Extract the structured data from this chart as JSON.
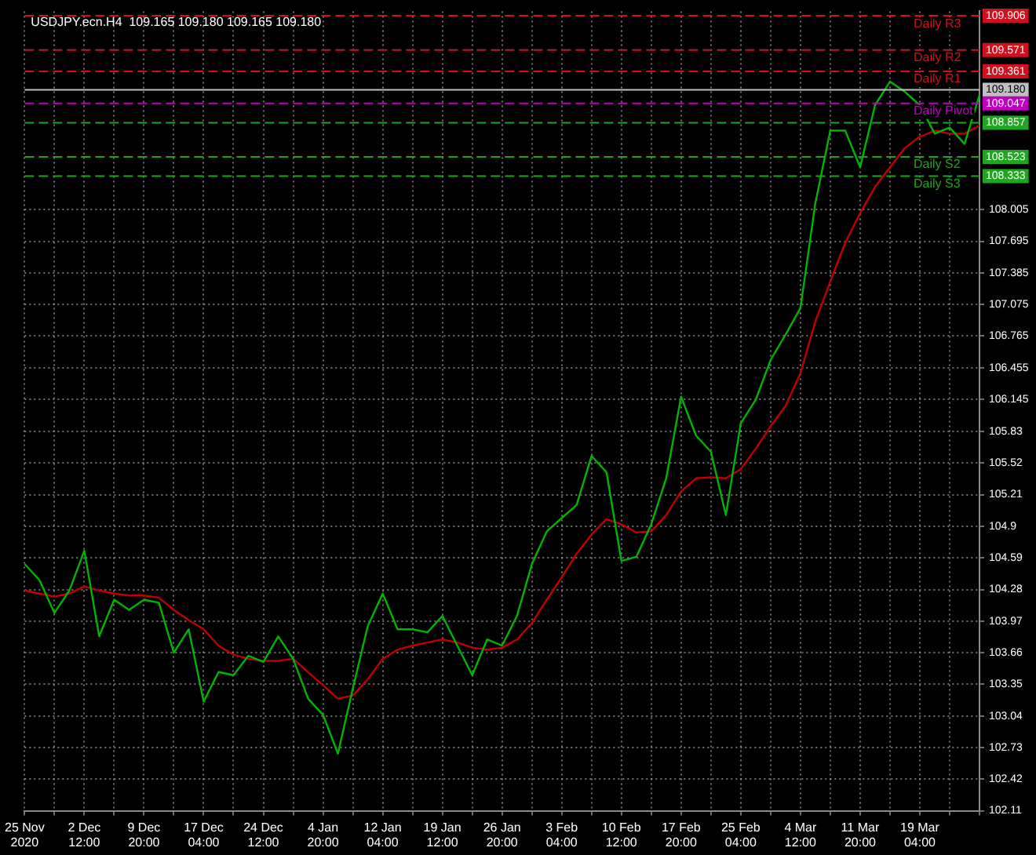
{
  "chart_data": {
    "type": "line",
    "title": "USDJPY.ecn.H4  109.165 109.180 109.165 109.180",
    "categories": [
      "25 Nov 2020",
      null,
      null,
      null,
      "2 Dec 12:00",
      null,
      null,
      null,
      "9 Dec 20:00",
      null,
      null,
      null,
      "17 Dec 04:00",
      null,
      null,
      null,
      "24 Dec 12:00",
      null,
      null,
      null,
      "4 Jan 20:00",
      null,
      null,
      null,
      "12 Jan 04:00",
      null,
      null,
      null,
      "19 Jan 12:00",
      null,
      null,
      null,
      "26 Jan 20:00",
      null,
      null,
      null,
      "3 Feb 04:00",
      null,
      null,
      null,
      "10 Feb 12:00",
      null,
      null,
      null,
      "17 Feb 20:00",
      null,
      null,
      null,
      "25 Feb 04:00",
      null,
      null,
      null,
      "4 Mar 12:00",
      null,
      null,
      null,
      "11 Mar 20:00",
      null,
      null,
      null,
      "19 Mar 04:00",
      null,
      null,
      null,
      null
    ],
    "series": [
      {
        "color": "#00b400",
        "values": [
          104.53,
          104.37,
          104.05,
          104.27,
          104.66,
          103.82,
          104.18,
          104.08,
          104.18,
          104.15,
          103.66,
          103.89,
          103.18,
          103.47,
          103.44,
          103.63,
          103.57,
          103.82,
          103.6,
          103.21,
          103.05,
          102.67,
          103.31,
          103.92,
          104.24,
          103.89,
          103.89,
          103.86,
          104.02,
          103.73,
          103.44,
          103.79,
          103.73,
          104.02,
          104.53,
          104.85,
          104.98,
          105.11,
          105.59,
          105.43,
          104.56,
          104.6,
          104.92,
          105.37,
          106.17,
          105.79,
          105.63,
          105.01,
          105.91,
          106.14,
          106.53,
          106.78,
          107.04,
          108.07,
          108.78,
          108.78,
          108.42,
          109.03,
          109.26,
          109.16,
          109.03,
          108.75,
          108.81,
          108.65,
          109.13
        ]
      },
      {
        "color": "#c00000",
        "values": [
          104.27,
          104.24,
          104.21,
          104.24,
          104.31,
          104.27,
          104.24,
          104.22,
          104.22,
          104.2,
          104.08,
          103.98,
          103.89,
          103.73,
          103.64,
          103.6,
          103.58,
          103.58,
          103.6,
          103.47,
          103.34,
          103.21,
          103.24,
          103.4,
          103.6,
          103.69,
          103.73,
          103.76,
          103.79,
          103.76,
          103.71,
          103.69,
          103.71,
          103.79,
          103.95,
          104.18,
          104.4,
          104.63,
          104.82,
          104.97,
          104.92,
          104.84,
          104.85,
          105.01,
          105.24,
          105.37,
          105.38,
          105.37,
          105.46,
          105.66,
          105.88,
          106.08,
          106.4,
          106.91,
          107.3,
          107.68,
          107.97,
          108.23,
          108.42,
          108.61,
          108.72,
          108.78,
          108.75,
          108.75,
          108.83
        ]
      }
    ],
    "ylim": [
      102.11,
      109.95
    ],
    "yticks": [
      102.11,
      102.42,
      102.73,
      103.04,
      103.35,
      103.66,
      103.97,
      104.28,
      104.59,
      104.9,
      105.21,
      105.52,
      105.83,
      106.145,
      106.455,
      106.765,
      107.075,
      107.385,
      107.695,
      108.005
    ],
    "annotations": [
      {
        "text": "109.906",
        "y": 109.906
      },
      {
        "text": "109.571",
        "y": 109.571
      },
      {
        "text": "109.361",
        "y": 109.361
      },
      {
        "text": "109.180",
        "y": 109.18
      },
      {
        "text": "109.047",
        "y": 109.047
      },
      {
        "text": "108.857",
        "y": 108.857
      },
      {
        "text": "108.523",
        "y": 108.523
      },
      {
        "text": "108.333",
        "y": 108.333
      }
    ],
    "grid": true,
    "ref_lines": [
      {
        "axis": "y",
        "value": 109.906,
        "label": "Daily R3",
        "color": "#d0101c",
        "line_style": "dashed"
      },
      {
        "axis": "y",
        "value": 109.571,
        "label": "Daily R2",
        "color": "#d0101c",
        "line_style": "dashed"
      },
      {
        "axis": "y",
        "value": 109.361,
        "label": "Daily R1",
        "color": "#d0101c",
        "line_style": "dashed"
      },
      {
        "axis": "y",
        "value": 109.18,
        "label": null,
        "color": "#c0c0c0",
        "line_style": "solid"
      },
      {
        "axis": "y",
        "value": 109.047,
        "label": "Daily Pivot",
        "color": "#c000c0",
        "line_style": "dashed"
      },
      {
        "axis": "y",
        "value": 108.857,
        "label": null,
        "color": "#1fa51f",
        "line_style": "dashed"
      },
      {
        "axis": "y",
        "value": 108.523,
        "label": "Daily S2",
        "color": "#1fa51f",
        "line_style": "dashed"
      },
      {
        "axis": "y",
        "value": 108.333,
        "label": "Daily S3",
        "color": "#1fa51f",
        "line_style": "dashed"
      }
    ]
  }
}
